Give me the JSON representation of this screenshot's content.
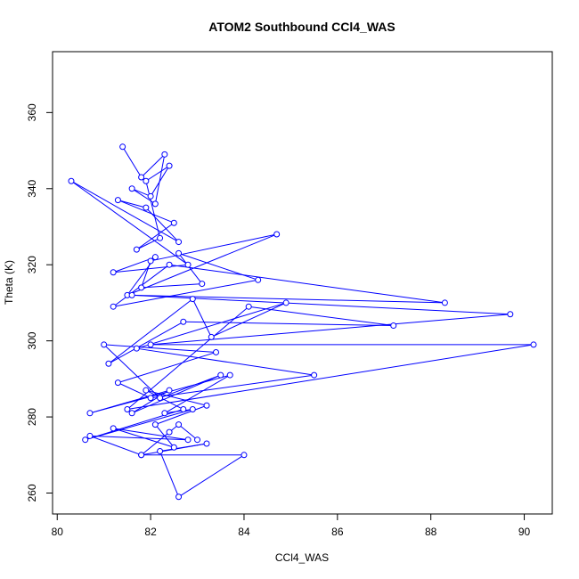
{
  "chart_data": {
    "type": "scatter",
    "title": "ATOM2 Southbound CCl4_WAS",
    "xlabel": "CCl4_WAS",
    "ylabel": "Theta (K)",
    "xlim": [
      79.9,
      90.6
    ],
    "ylim": [
      254.5,
      376
    ],
    "xticks": [
      80,
      82,
      84,
      86,
      88,
      90
    ],
    "yticks": [
      260,
      280,
      300,
      320,
      340,
      360
    ],
    "grid": false,
    "line_color": "#0000ff",
    "marker": "open-circle",
    "series": [
      {
        "x": [
          81.4,
          81.8,
          82.3,
          82.1,
          81.6,
          82.0,
          82.4,
          81.9,
          82.2,
          81.7,
          82.5,
          81.3,
          81.9,
          82.6,
          80.3,
          82.8,
          81.2,
          82.1,
          81.5,
          84.7,
          82.0,
          81.8,
          83.1,
          82.6,
          84.3,
          81.2,
          82.4,
          88.3,
          81.6,
          89.7,
          82.0,
          90.2,
          81.5,
          84.1,
          87.2,
          82.7,
          81.1,
          82.9,
          83.3,
          84.9,
          81.7,
          85.5,
          82.0,
          81.3,
          83.4,
          81.0,
          82.2,
          83.5,
          81.6,
          82.4,
          80.7,
          83.7,
          82.3,
          82.9,
          80.6,
          82.7,
          81.9,
          83.2,
          82.1,
          82.5,
          81.2,
          82.8,
          80.7,
          81.8,
          84.0,
          82.6,
          82.2,
          83.2,
          81.8,
          82.4,
          82.6,
          83.0
        ],
        "y": [
          351,
          343,
          349,
          336,
          340,
          338,
          346,
          342,
          327,
          324,
          331,
          337,
          335,
          326,
          342,
          320,
          318,
          322,
          312,
          328,
          321,
          314,
          315,
          323,
          316,
          309,
          320,
          310,
          312,
          307,
          299,
          299,
          282,
          309,
          304,
          305,
          294,
          311,
          301,
          310,
          298,
          291,
          285,
          289,
          297,
          299,
          285,
          291,
          281,
          287,
          281,
          291,
          281,
          282,
          274,
          282,
          287,
          283,
          278,
          272,
          277,
          274,
          275,
          270,
          270,
          259,
          271,
          273,
          270,
          276,
          278,
          274
        ]
      }
    ]
  }
}
